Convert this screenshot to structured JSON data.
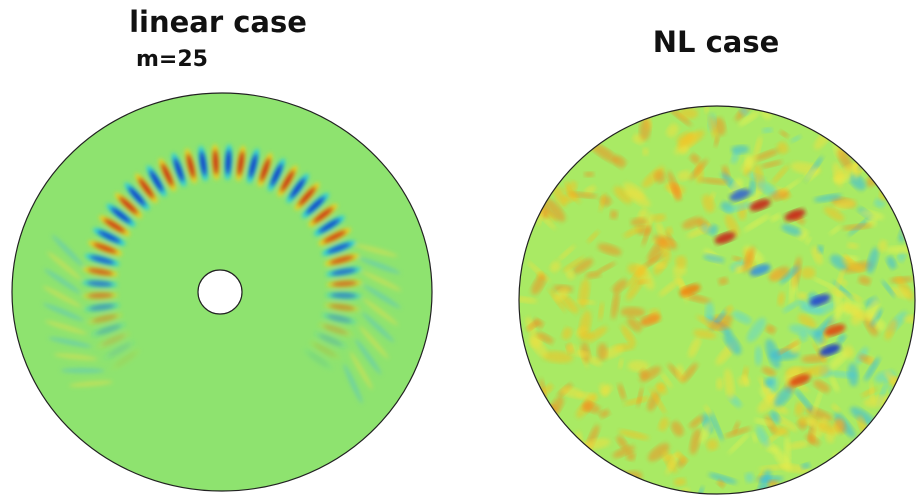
{
  "left_panel": {
    "title": "linear case",
    "subtitle": "m=25"
  },
  "right_panel": {
    "title": "NL case"
  }
}
